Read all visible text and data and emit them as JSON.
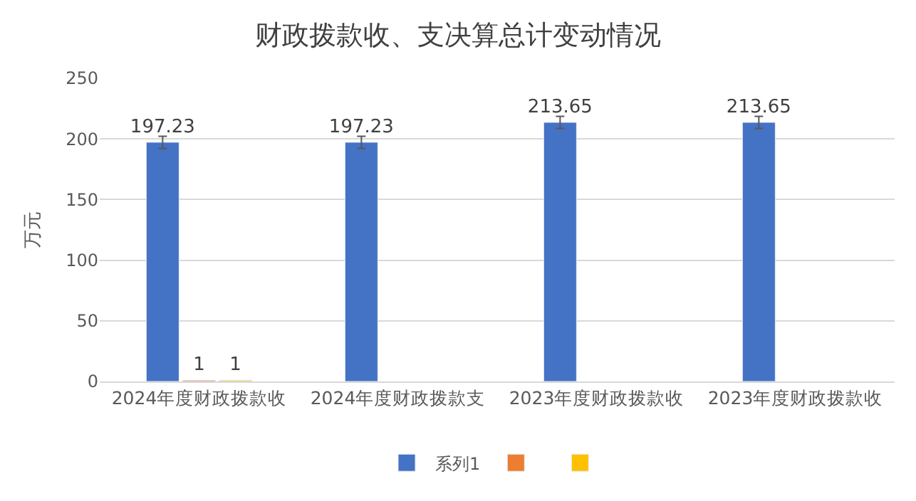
{
  "chart_data": {
    "type": "bar",
    "title": "财政拨款收、支决算总计变动情况",
    "ylabel": "万元",
    "categories": [
      "2024年度财政拨款收",
      "2024年度财政拨款支",
      "2023年度财政拨款收",
      "2023年度财政拨款收"
    ],
    "series": [
      {
        "name": "系列1",
        "color": "#4472c4",
        "values": [
          197.23,
          197.23,
          213.65,
          213.65
        ],
        "errors": [
          5,
          5,
          5,
          5
        ]
      },
      {
        "color": "#ed7d31",
        "values": [
          1,
          null,
          null,
          null
        ]
      },
      {
        "color": "#ffc000",
        "values": [
          1,
          null,
          null,
          null
        ]
      }
    ],
    "ylim": [
      0,
      250
    ],
    "yticks": [
      0,
      50,
      100,
      150,
      200,
      250
    ],
    "grid": "y",
    "legend": "bottom",
    "data_labels": true
  }
}
